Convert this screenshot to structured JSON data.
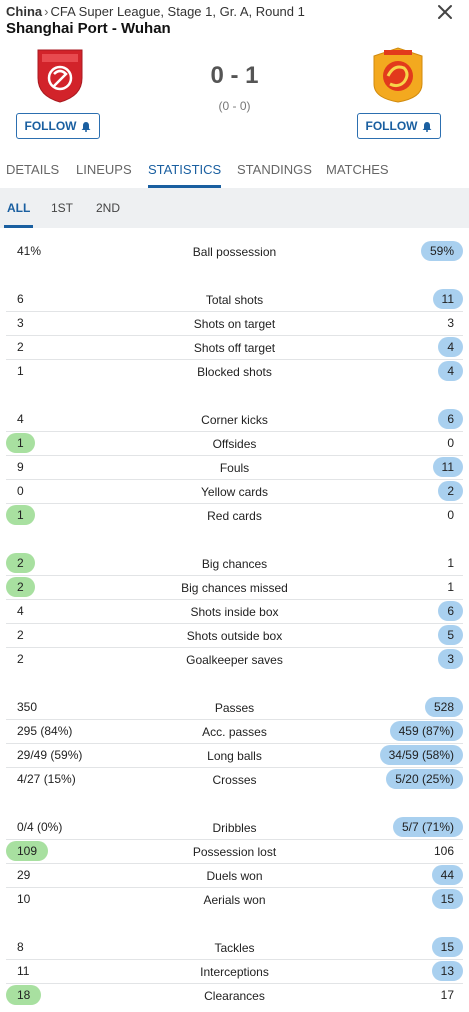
{
  "header": {
    "country": "China",
    "competition": "CFA Super League, Stage 1, Gr. A, Round 1",
    "match_title": "Shanghai Port - Wuhan",
    "score": "0 - 1",
    "halftime": "(0 - 0)",
    "follow_home": "FOLLOW",
    "follow_away": "FOLLOW"
  },
  "tabs": [
    {
      "label": "DETAILS"
    },
    {
      "label": "LINEUPS"
    },
    {
      "label": "STATISTICS",
      "active": true
    },
    {
      "label": "STANDINGS"
    },
    {
      "label": "MATCHES"
    }
  ],
  "subtabs": [
    {
      "label": "ALL",
      "active": true
    },
    {
      "label": "1ST"
    },
    {
      "label": "2ND"
    }
  ],
  "colors": {
    "accent": "#1a5fa0",
    "winner_home_pill": "#a8e0a0",
    "winner_away_pill": "#a9d0ef"
  },
  "stat_groups": [
    [
      {
        "label": "Ball possession",
        "home": "41%",
        "away": "59%",
        "hl": "away"
      }
    ],
    [
      {
        "label": "Total shots",
        "home": "6",
        "away": "11",
        "hl": "away"
      },
      {
        "label": "Shots on target",
        "home": "3",
        "away": "3",
        "hl": ""
      },
      {
        "label": "Shots off target",
        "home": "2",
        "away": "4",
        "hl": "away"
      },
      {
        "label": "Blocked shots",
        "home": "1",
        "away": "4",
        "hl": "away"
      }
    ],
    [
      {
        "label": "Corner kicks",
        "home": "4",
        "away": "6",
        "hl": "away"
      },
      {
        "label": "Offsides",
        "home": "1",
        "away": "0",
        "hl": "home"
      },
      {
        "label": "Fouls",
        "home": "9",
        "away": "11",
        "hl": "away"
      },
      {
        "label": "Yellow cards",
        "home": "0",
        "away": "2",
        "hl": "away"
      },
      {
        "label": "Red cards",
        "home": "1",
        "away": "0",
        "hl": "home"
      }
    ],
    [
      {
        "label": "Big chances",
        "home": "2",
        "away": "1",
        "hl": "home"
      },
      {
        "label": "Big chances missed",
        "home": "2",
        "away": "1",
        "hl": "home"
      },
      {
        "label": "Shots inside box",
        "home": "4",
        "away": "6",
        "hl": "away"
      },
      {
        "label": "Shots outside box",
        "home": "2",
        "away": "5",
        "hl": "away"
      },
      {
        "label": "Goalkeeper saves",
        "home": "2",
        "away": "3",
        "hl": "away"
      }
    ],
    [
      {
        "label": "Passes",
        "home": "350",
        "away": "528",
        "hl": "away"
      },
      {
        "label": "Acc. passes",
        "home": "295 (84%)",
        "away": "459 (87%)",
        "hl": "away"
      },
      {
        "label": "Long balls",
        "home": "29/49 (59%)",
        "away": "34/59 (58%)",
        "hl": "away"
      },
      {
        "label": "Crosses",
        "home": "4/27 (15%)",
        "away": "5/20 (25%)",
        "hl": "away"
      }
    ],
    [
      {
        "label": "Dribbles",
        "home": "0/4 (0%)",
        "away": "5/7 (71%)",
        "hl": "away"
      },
      {
        "label": "Possession lost",
        "home": "109",
        "away": "106",
        "hl": "home"
      },
      {
        "label": "Duels won",
        "home": "29",
        "away": "44",
        "hl": "away"
      },
      {
        "label": "Aerials won",
        "home": "10",
        "away": "15",
        "hl": "away"
      }
    ],
    [
      {
        "label": "Tackles",
        "home": "8",
        "away": "15",
        "hl": "away"
      },
      {
        "label": "Interceptions",
        "home": "11",
        "away": "13",
        "hl": "away"
      },
      {
        "label": "Clearances",
        "home": "18",
        "away": "17",
        "hl": "home"
      }
    ]
  ]
}
